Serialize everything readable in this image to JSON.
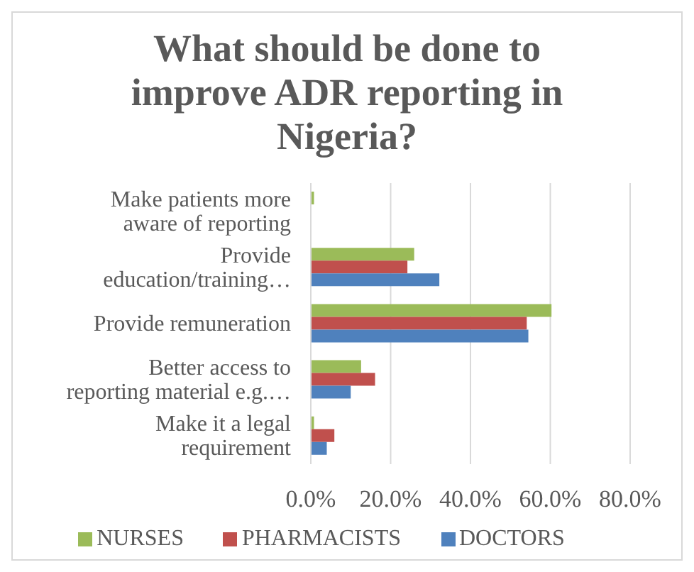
{
  "chart_data": {
    "type": "bar",
    "orientation": "horizontal",
    "title": "What should be done to improve ADR reporting in Nigeria?",
    "categories": [
      "Make patients more aware of reporting",
      "Provide education/training…",
      "Provide remuneration",
      "Better access to reporting material e.g.…",
      "Make it a legal requirement"
    ],
    "series": [
      {
        "name": "NURSES",
        "color": "#9bbb59",
        "values": [
          0.8,
          25.9,
          60.3,
          12.6,
          0.8
        ]
      },
      {
        "name": "PHARMACISTS",
        "color": "#c0504d",
        "values": [
          0,
          24.2,
          54.1,
          16.1,
          5.9
        ]
      },
      {
        "name": "DOCTORS",
        "color": "#4f81bd",
        "values": [
          0,
          32.2,
          54.5,
          10.0,
          4.0
        ]
      }
    ],
    "xlim": [
      0,
      80
    ],
    "xticks": [
      {
        "value": 0,
        "label": "0.0%"
      },
      {
        "value": 20,
        "label": "20.0%"
      },
      {
        "value": 40,
        "label": "40.0%"
      },
      {
        "value": 60,
        "label": "60.0%"
      },
      {
        "value": 80,
        "label": "80.0%"
      }
    ],
    "grid": "x",
    "legend": "bottom"
  }
}
